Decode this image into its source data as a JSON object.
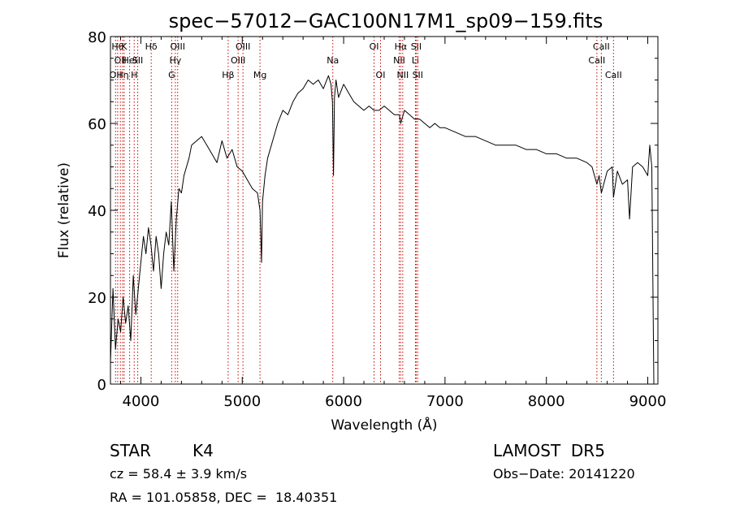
{
  "chart_data": {
    "type": "line",
    "title": "spec−57012−GAC100N17M1_sp09−159.fits",
    "xlabel": "Wavelength (Å)",
    "ylabel": "Flux (relative)",
    "xlim": [
      3700,
      9100
    ],
    "ylim": [
      0,
      80
    ],
    "xticks": [
      4000,
      5000,
      6000,
      7000,
      8000,
      9000
    ],
    "yticks": [
      0,
      20,
      40,
      60,
      80
    ],
    "grid": false,
    "line_color": "#000000",
    "marker_color": "#cc0000",
    "series": [
      {
        "x": [
          3700,
          3725,
          3750,
          3775,
          3800,
          3825,
          3850,
          3875,
          3900,
          3925,
          3950,
          3975,
          4000,
          4025,
          4050,
          4075,
          4100,
          4125,
          4150,
          4175,
          4200,
          4225,
          4250,
          4275,
          4300,
          4325,
          4350,
          4375,
          4400,
          4425,
          4450,
          4475,
          4500,
          4550,
          4600,
          4650,
          4700,
          4750,
          4800,
          4850,
          4900,
          4950,
          5000,
          5050,
          5100,
          5150,
          5175,
          5190,
          5200,
          5225,
          5250,
          5300,
          5350,
          5400,
          5450,
          5500,
          5550,
          5600,
          5650,
          5700,
          5750,
          5800,
          5850,
          5875,
          5890,
          5900,
          5910,
          5925,
          5950,
          6000,
          6050,
          6100,
          6150,
          6200,
          6250,
          6300,
          6350,
          6400,
          6450,
          6500,
          6550,
          6563,
          6600,
          6650,
          6700,
          6750,
          6800,
          6850,
          6900,
          6950,
          7000,
          7100,
          7200,
          7300,
          7400,
          7500,
          7600,
          7700,
          7800,
          7900,
          8000,
          8100,
          8200,
          8300,
          8400,
          8450,
          8498,
          8520,
          8542,
          8600,
          8650,
          8662,
          8700,
          8750,
          8800,
          8820,
          8850,
          8900,
          8950,
          9000,
          9020,
          9040,
          9060
        ],
        "y": [
          5,
          22,
          8,
          15,
          12,
          20,
          14,
          18,
          10,
          25,
          16,
          22,
          28,
          34,
          30,
          36,
          32,
          26,
          34,
          30,
          22,
          30,
          35,
          32,
          42,
          26,
          38,
          45,
          44,
          48,
          50,
          52,
          55,
          56,
          57,
          55,
          53,
          51,
          56,
          52,
          54,
          50,
          49,
          47,
          45,
          44,
          40,
          28,
          42,
          48,
          52,
          56,
          60,
          63,
          62,
          65,
          67,
          68,
          70,
          69,
          70,
          68,
          71,
          69,
          65,
          48,
          66,
          70,
          66,
          69,
          67,
          65,
          64,
          63,
          64,
          63,
          63,
          64,
          63,
          62,
          62,
          60,
          63,
          62,
          61,
          61,
          60,
          59,
          60,
          59,
          59,
          58,
          57,
          57,
          56,
          55,
          55,
          55,
          54,
          54,
          53,
          53,
          52,
          52,
          51,
          50,
          46,
          48,
          44,
          49,
          50,
          43,
          49,
          46,
          47,
          38,
          50,
          51,
          50,
          48,
          55,
          50,
          0
        ]
      }
    ],
    "line_markers": [
      {
        "x": 3750,
        "label": "OII",
        "row": 3
      },
      {
        "x": 3771,
        "label": "Hθ",
        "row": 1
      },
      {
        "x": 3798,
        "label": "OII",
        "row": 2
      },
      {
        "x": 3820,
        "label": "Hη",
        "row": 3
      },
      {
        "x": 3835,
        "label": "K",
        "row": 1
      },
      {
        "x": 3889,
        "label": "HeI",
        "row": 2
      },
      {
        "x": 3934,
        "label": "H",
        "row": 3
      },
      {
        "x": 3969,
        "label": "SII",
        "row": 2
      },
      {
        "x": 4102,
        "label": "Hδ",
        "row": 1
      },
      {
        "x": 4304,
        "label": "G",
        "row": 3
      },
      {
        "x": 4340,
        "label": "Hγ",
        "row": 2
      },
      {
        "x": 4363,
        "label": "OIII",
        "row": 1
      },
      {
        "x": 4861,
        "label": "Hβ",
        "row": 3
      },
      {
        "x": 4959,
        "label": "OIII",
        "row": 2
      },
      {
        "x": 5007,
        "label": "OIII",
        "row": 1
      },
      {
        "x": 5175,
        "label": "Mg",
        "row": 3
      },
      {
        "x": 5893,
        "label": "Na",
        "row": 2
      },
      {
        "x": 6300,
        "label": "OI",
        "row": 1
      },
      {
        "x": 6364,
        "label": "OI",
        "row": 3
      },
      {
        "x": 6548,
        "label": "NII",
        "row": 2
      },
      {
        "x": 6563,
        "label": "Hα",
        "row": 1
      },
      {
        "x": 6583,
        "label": "NII",
        "row": 3
      },
      {
        "x": 6708,
        "label": "Li",
        "row": 2
      },
      {
        "x": 6716,
        "label": "SII",
        "row": 1
      },
      {
        "x": 6731,
        "label": "SII",
        "row": 3
      },
      {
        "x": 8498,
        "label": "CaII",
        "row": 2
      },
      {
        "x": 8542,
        "label": "CaII",
        "row": 1
      },
      {
        "x": 8662,
        "label": "CaII",
        "row": 3
      }
    ]
  },
  "info": {
    "object_class": "STAR",
    "subclass": "K4",
    "survey": "LAMOST  DR5",
    "cz": "cz = 58.4 ± 3.9 km/s",
    "obs_date": "Obs−Date: 20141220",
    "coords": "RA = 101.05858, DEC =  18.40351"
  }
}
